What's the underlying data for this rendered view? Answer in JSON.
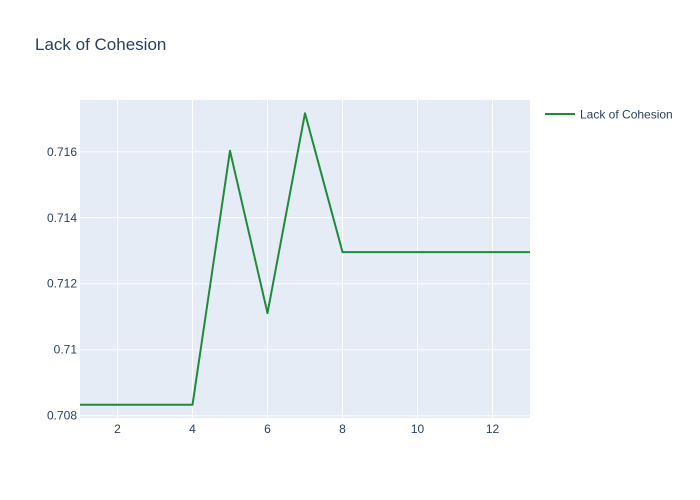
{
  "chart_data": {
    "type": "line",
    "title": "Lack of Cohesion",
    "xlabel": "",
    "ylabel": "",
    "x": [
      1,
      2,
      3,
      4,
      5,
      6,
      7,
      8,
      9,
      10,
      11,
      12,
      13
    ],
    "series": [
      {
        "name": "Lack of Cohesion",
        "values": [
          0.70833,
          0.70833,
          0.70833,
          0.70833,
          0.71603,
          0.71111,
          0.71717,
          0.71296,
          0.71296,
          0.71296,
          0.71296,
          0.71296,
          0.71296
        ]
      }
    ],
    "xlim": [
      1,
      13
    ],
    "ylim": [
      0.70793,
      0.71757
    ],
    "x_ticks": [
      2,
      4,
      6,
      8,
      10,
      12
    ],
    "y_ticks": [
      0.708,
      0.71,
      0.712,
      0.714,
      0.716
    ],
    "y_tick_labels": [
      "0.708",
      "0.71",
      "0.712",
      "0.714",
      "0.716"
    ],
    "grid": true,
    "legend_position": "top-right",
    "colors": {
      "series": "#1f8b3a",
      "plot_bg": "#e5ecf6",
      "grid": "#ffffff",
      "text": "#2a3f5f"
    }
  }
}
